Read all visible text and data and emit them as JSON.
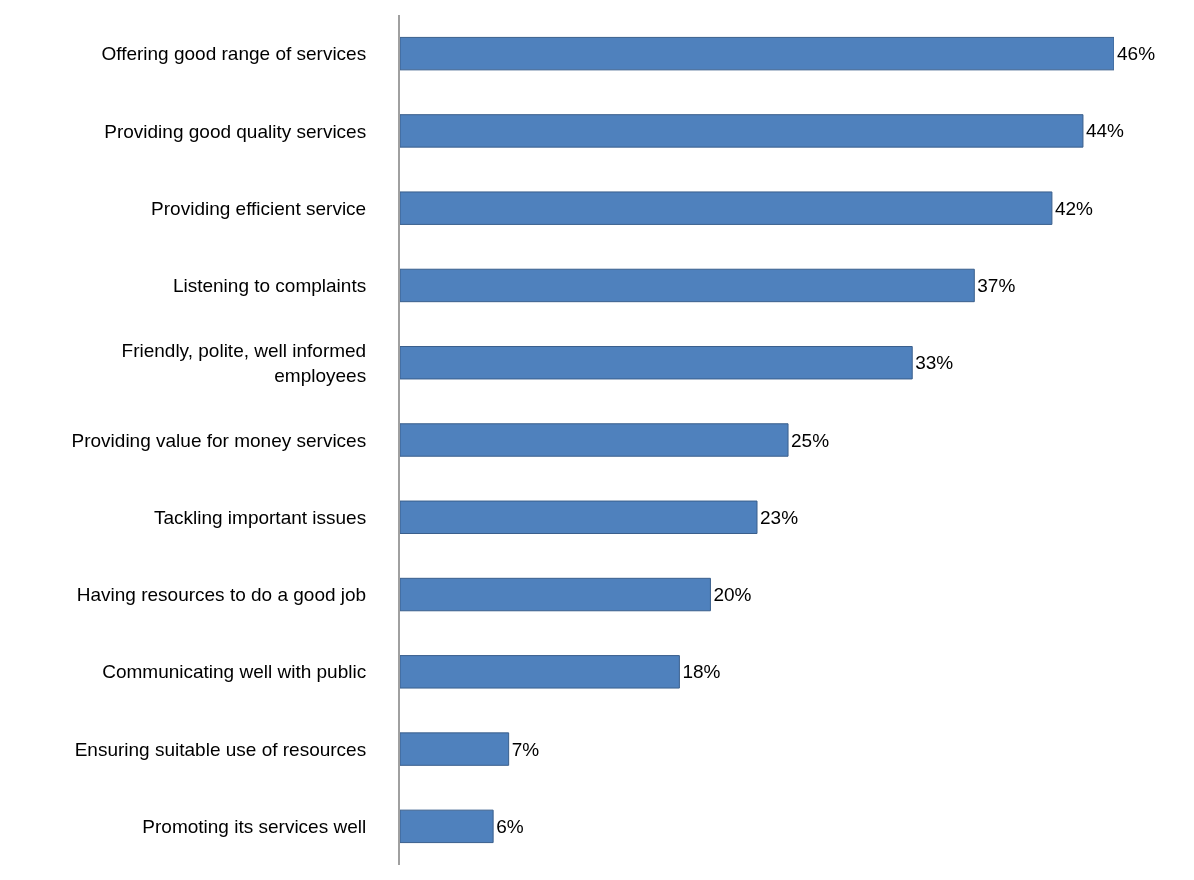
{
  "chart_data": {
    "type": "bar",
    "orientation": "horizontal",
    "categories": [
      "Offering good range of services",
      "Providing good quality services",
      "Providing efficient service",
      "Listening to complaints",
      "Friendly, polite, well informed employees",
      "Providing value for money services",
      "Tackling important issues",
      "Having resources to do a good job",
      "Communicating well with public",
      "Ensuring suitable use of resources",
      "Promoting its services well"
    ],
    "values": [
      46,
      44,
      42,
      37,
      33,
      25,
      23,
      20,
      18,
      7,
      6
    ],
    "value_labels": [
      "46%",
      "44%",
      "42%",
      "37%",
      "33%",
      "25%",
      "23%",
      "20%",
      "18%",
      "7%",
      "6%"
    ],
    "color": "#4f81bd"
  }
}
